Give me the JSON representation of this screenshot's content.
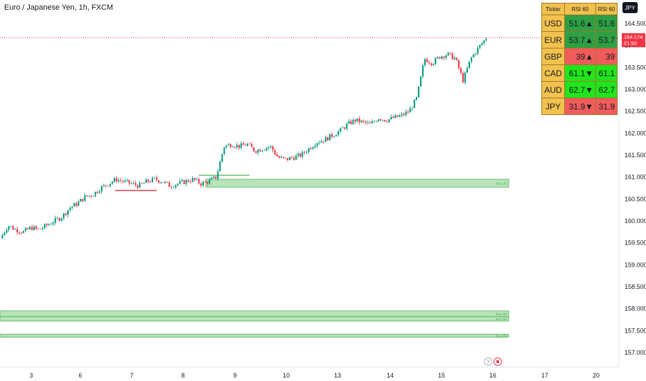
{
  "header": {
    "title": "Euro / Japanese Yen, 1h, FXCM"
  },
  "currency_button": {
    "label": "JPY"
  },
  "last_price": {
    "value": "164.174",
    "countdown": "21:50",
    "price": 164.174
  },
  "price_axis": {
    "ticks": [
      "164.500",
      "164.000",
      "163.500",
      "163.000",
      "162.500",
      "162.000",
      "161.500",
      "161.000",
      "160.500",
      "160.000",
      "159.500",
      "159.000",
      "158.500",
      "158.000",
      "157.500",
      "157.000"
    ]
  },
  "date_axis": {
    "ticks": [
      "3",
      "6",
      "7",
      "8",
      "9",
      "10",
      "13",
      "14",
      "15",
      "16",
      "17",
      "20"
    ]
  },
  "rsi_table": {
    "headers": [
      "Ticker",
      "RSI 60",
      "RSI 60"
    ],
    "rows": [
      {
        "ticker": "USD",
        "value1": "51.6▲",
        "value2": "51.6",
        "color1": "#2ea043",
        "color2": "#2ea043"
      },
      {
        "ticker": "EUR",
        "value1": "53.7▲",
        "value2": "53.7",
        "color1": "#2ea043",
        "color2": "#2ea043"
      },
      {
        "ticker": "GBP",
        "value1": "39▲",
        "value2": "39",
        "color1": "#f25b5b",
        "color2": "#f25b5b"
      },
      {
        "ticker": "CAD",
        "value1": "61.1▼",
        "value2": "61.1",
        "color1": "#22e41c",
        "color2": "#22e41c"
      },
      {
        "ticker": "AUD",
        "value1": "62.7▼",
        "value2": "62.7",
        "color1": "#22e41c",
        "color2": "#22e41c"
      },
      {
        "ticker": "JPY",
        "value1": "31.9▼",
        "value2": "31.9",
        "color1": "#f25b5b",
        "color2": "#f25b5b"
      }
    ]
  },
  "zones": [
    {
      "label": "Buy OB",
      "top": 160.95,
      "bottom": 160.77
    },
    {
      "label": "Buy OB",
      "top": 157.95,
      "bottom": 157.82
    },
    {
      "label": "Buy OB",
      "top": 157.82,
      "bottom": 157.72
    },
    {
      "label": "Buy OB",
      "top": 157.42,
      "bottom": 157.35
    }
  ],
  "colors": {
    "up": "#089981",
    "down": "#f23645",
    "zone_fill": "#b7e4b9",
    "zone_border": "#4caf50"
  },
  "chart_data": {
    "type": "candlestick",
    "title": "Euro / Japanese Yen, 1h, FXCM",
    "symbol": "EURJPY",
    "ylim": [
      156.8,
      164.8
    ],
    "x_ticks": [
      "3",
      "6",
      "7",
      "8",
      "9",
      "10",
      "13",
      "14",
      "15",
      "16",
      "17",
      "20"
    ],
    "close_path": [
      [
        0,
        159.6
      ],
      [
        1,
        159.9
      ],
      [
        2,
        159.8
      ],
      [
        3,
        159.75
      ],
      [
        4,
        159.85
      ],
      [
        5,
        159.8
      ],
      [
        6,
        159.9
      ],
      [
        7,
        160.0
      ],
      [
        8,
        160.1
      ],
      [
        9,
        160.3
      ],
      [
        10,
        160.4
      ],
      [
        11,
        160.55
      ],
      [
        12,
        160.6
      ],
      [
        13,
        160.75
      ],
      [
        14,
        160.85
      ],
      [
        15,
        160.95
      ],
      [
        16,
        160.9
      ],
      [
        17,
        160.85
      ],
      [
        18,
        160.8
      ],
      [
        19,
        160.9
      ],
      [
        20,
        160.95
      ],
      [
        21,
        160.9
      ],
      [
        22,
        160.8
      ],
      [
        23,
        160.85
      ],
      [
        24,
        160.9
      ],
      [
        25,
        160.95
      ],
      [
        26,
        160.85
      ],
      [
        27,
        160.9
      ],
      [
        28,
        161.0
      ],
      [
        29,
        161.7
      ],
      [
        30,
        161.75
      ],
      [
        31,
        161.7
      ],
      [
        32,
        161.75
      ],
      [
        33,
        161.6
      ],
      [
        34,
        161.65
      ],
      [
        35,
        161.7
      ],
      [
        36,
        161.45
      ],
      [
        37,
        161.4
      ],
      [
        38,
        161.45
      ],
      [
        39,
        161.5
      ],
      [
        40,
        161.65
      ],
      [
        41,
        161.8
      ],
      [
        42,
        161.85
      ],
      [
        43,
        161.95
      ],
      [
        44,
        162.05
      ],
      [
        45,
        162.2
      ],
      [
        46,
        162.3
      ],
      [
        47,
        162.25
      ],
      [
        48,
        162.2
      ],
      [
        49,
        162.35
      ],
      [
        50,
        162.3
      ],
      [
        51,
        162.35
      ],
      [
        52,
        162.4
      ],
      [
        53,
        162.5
      ],
      [
        54,
        162.8
      ],
      [
        55,
        163.7
      ],
      [
        56,
        163.6
      ],
      [
        57,
        163.75
      ],
      [
        58,
        163.8
      ],
      [
        59,
        163.7
      ],
      [
        60,
        163.2
      ],
      [
        61,
        163.7
      ],
      [
        62,
        163.95
      ],
      [
        63,
        164.17
      ]
    ]
  }
}
